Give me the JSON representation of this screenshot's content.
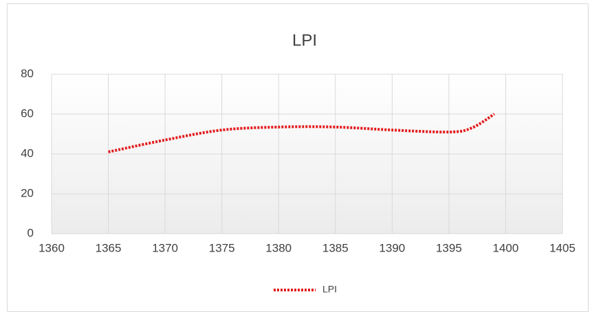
{
  "chart_data": {
    "type": "line",
    "title": "LPI",
    "x": [
      1365,
      1370,
      1375,
      1380,
      1385,
      1390,
      1395,
      1397,
      1399
    ],
    "series": [
      {
        "name": "LPI",
        "color": "#e31a1c",
        "values": [
          41,
          47,
          52,
          53.5,
          53.5,
          52,
          51,
          53,
          60
        ]
      }
    ],
    "xlim": [
      1360,
      1405
    ],
    "xticks": [
      1360,
      1365,
      1370,
      1375,
      1380,
      1385,
      1390,
      1395,
      1400,
      1405
    ],
    "ylim": [
      0,
      80
    ],
    "yticks": [
      0,
      20,
      40,
      60,
      80
    ],
    "grid": true,
    "legend": "bottom"
  }
}
